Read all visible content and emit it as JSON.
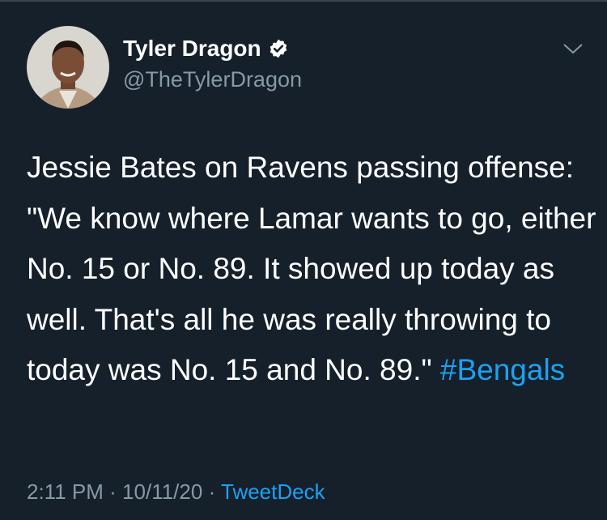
{
  "tweet": {
    "author": {
      "name": "Tyler Dragon",
      "handle": "@TheTylerDragon"
    },
    "text": "Jessie Bates on Ravens passing offense: \"We know where Lamar wants to go, either No. 15 or No. 89. It showed up today as well. That's all he was really throwing to today was No. 15 and No. 89.\"",
    "hashtag": "#Bengals",
    "time": "2:11 PM",
    "separator": "·",
    "date": "10/11/20",
    "source": "TweetDeck"
  }
}
